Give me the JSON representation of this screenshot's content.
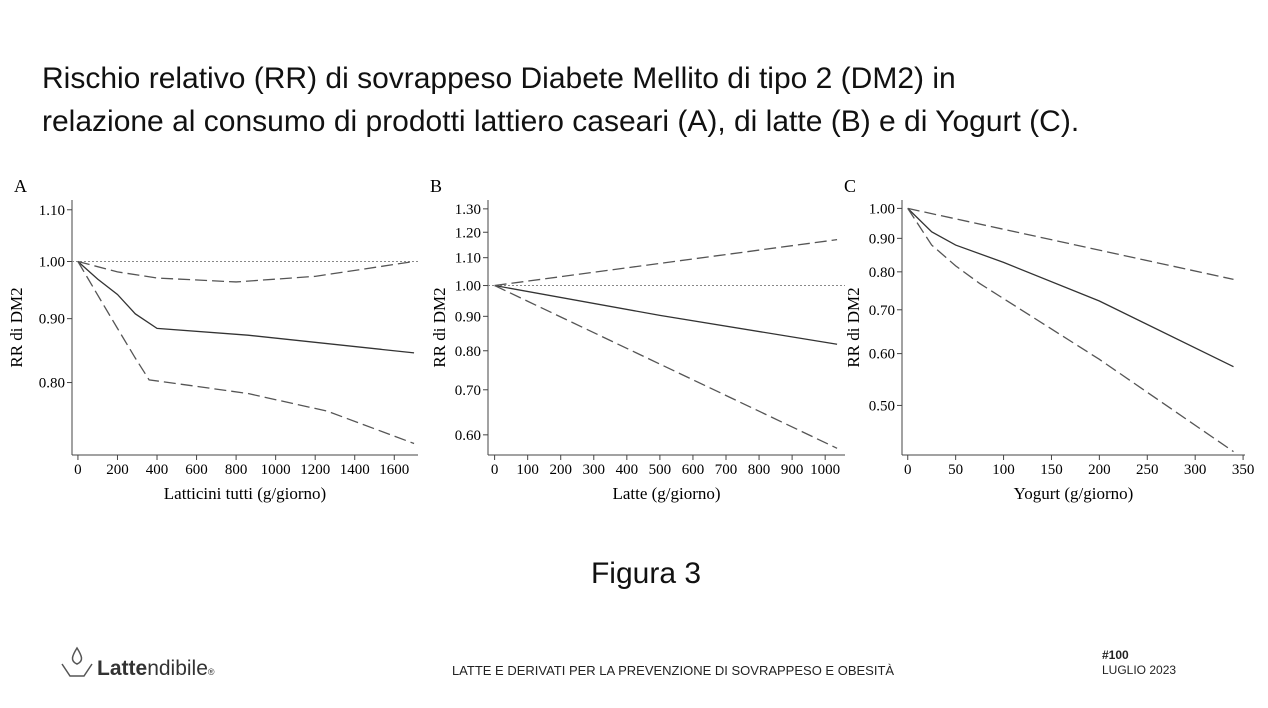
{
  "slide": {
    "title": [
      "Rischio relativo (RR) di sovrappeso Diabete Mellito di tipo 2  (DM2) in",
      "relazione al consumo di prodotti lattiero caseari (A), di latte (B) e di Yogurt (C)."
    ],
    "figure_label": "Figura 3",
    "logo": {
      "bold": "Latte",
      "rest": "ndibile",
      "mark": "®"
    },
    "footer": "LATTE E DERIVATI PER LA PREVENZIONE DI SOVRAPPESO E OBESITÀ",
    "issue": "#100",
    "date": "LUGLIO 2023"
  },
  "chart_data": [
    {
      "type": "line",
      "panel": "A",
      "xlabel": "Latticini tutti (g/giorno)",
      "ylabel": "RR di DM2",
      "log_y": true,
      "xlim": [
        -30,
        1720
      ],
      "xticks": [
        0,
        200,
        400,
        600,
        800,
        1000,
        1200,
        1400,
        1600
      ],
      "ylim": [
        0.7,
        1.12
      ],
      "yticks": [
        {
          "value": 0.8,
          "label": "0.80"
        },
        {
          "value": 0.9,
          "label": "0.90"
        },
        {
          "value": 1.0,
          "label": "1.00"
        },
        {
          "value": 1.1,
          "label": "1.10"
        }
      ],
      "reference_line": 1.0,
      "series": [
        {
          "color": "#333333",
          "dash": "solid",
          "x": [
            0,
            100,
            200,
            290,
            400,
            860,
            1700
          ],
          "values": [
            1.0,
            0.968,
            0.941,
            0.908,
            0.884,
            0.873,
            0.845
          ]
        },
        {
          "color": "#555555",
          "dash": "dashed",
          "x": [
            0,
            200,
            400,
            800,
            1200,
            1700
          ],
          "values": [
            1.0,
            0.981,
            0.97,
            0.963,
            0.973,
            1.0
          ]
        },
        {
          "color": "#555555",
          "dash": "dashed",
          "x": [
            0,
            100,
            200,
            290,
            360,
            510,
            860,
            1260,
            1700
          ],
          "values": [
            1.0,
            0.94,
            0.884,
            0.837,
            0.804,
            0.798,
            0.784,
            0.759,
            0.715
          ]
        }
      ]
    },
    {
      "type": "line",
      "panel": "B",
      "xlabel": "Latte (g/giorno)",
      "ylabel": "RR di DM2",
      "log_y": true,
      "xlim": [
        -20,
        1060
      ],
      "xticks": [
        0,
        100,
        200,
        300,
        400,
        500,
        600,
        700,
        800,
        900,
        1000
      ],
      "ylim": [
        0.56,
        1.34
      ],
      "yticks": [
        {
          "value": 0.6,
          "label": "0.60"
        },
        {
          "value": 0.7,
          "label": "0.70"
        },
        {
          "value": 0.8,
          "label": "0.80"
        },
        {
          "value": 0.9,
          "label": "0.90"
        },
        {
          "value": 1.0,
          "label": "1.00"
        },
        {
          "value": 1.1,
          "label": "1.10"
        },
        {
          "value": 1.2,
          "label": "1.20"
        },
        {
          "value": 1.3,
          "label": "1.30"
        }
      ],
      "reference_line": 1.0,
      "series": [
        {
          "color": "#333333",
          "dash": "solid",
          "x": [
            0,
            500,
            1036
          ],
          "values": [
            1.0,
            0.903,
            0.818
          ]
        },
        {
          "color": "#555555",
          "dash": "dashed",
          "x": [
            0,
            1036
          ],
          "values": [
            1.0,
            1.17
          ]
        },
        {
          "color": "#555555",
          "dash": "dashed",
          "x": [
            0,
            1036
          ],
          "values": [
            1.0,
            0.573
          ]
        }
      ]
    },
    {
      "type": "line",
      "panel": "C",
      "xlabel": "Yogurt (g/giorno)",
      "ylabel": "RR di DM2",
      "log_y": true,
      "xlim": [
        -6,
        352
      ],
      "xticks": [
        0,
        50,
        100,
        150,
        200,
        250,
        300,
        350
      ],
      "ylim": [
        0.42,
        1.03
      ],
      "yticks": [
        {
          "value": 0.5,
          "label": "0.50"
        },
        {
          "value": 0.6,
          "label": "0.60"
        },
        {
          "value": 0.7,
          "label": "0.70"
        },
        {
          "value": 0.8,
          "label": "0.80"
        },
        {
          "value": 0.9,
          "label": "0.90"
        },
        {
          "value": 1.0,
          "label": "1.00"
        }
      ],
      "series": [
        {
          "color": "#333333",
          "dash": "solid",
          "x": [
            0,
            25,
            50,
            100,
            200,
            340
          ],
          "values": [
            1.0,
            0.921,
            0.879,
            0.827,
            0.722,
            0.573
          ]
        },
        {
          "color": "#555555",
          "dash": "dashed",
          "x": [
            0,
            340
          ],
          "values": [
            1.0,
            0.779
          ]
        },
        {
          "color": "#555555",
          "dash": "dashed",
          "x": [
            0,
            25,
            50,
            75,
            200,
            340
          ],
          "values": [
            1.0,
            0.879,
            0.817,
            0.768,
            0.588,
            0.425
          ]
        }
      ]
    }
  ]
}
